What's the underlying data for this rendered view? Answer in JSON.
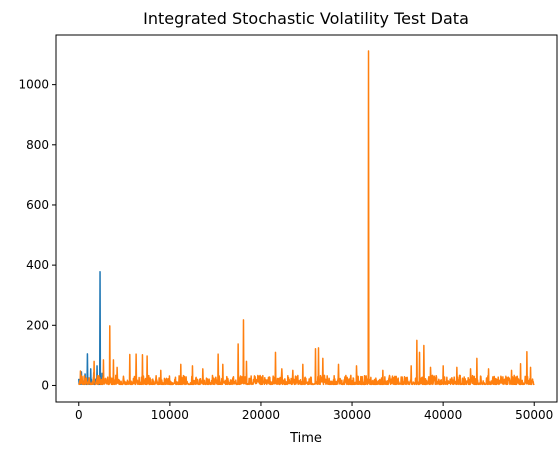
{
  "chart_data": {
    "type": "line",
    "title": "Integrated Stochastic Volatility Test Data",
    "xlabel": "Time",
    "ylabel": "",
    "xlim": [
      -2500,
      52500
    ],
    "ylim": [
      -55,
      1165
    ],
    "x_ticks": [
      0,
      10000,
      20000,
      30000,
      40000,
      50000
    ],
    "x_tick_labels": [
      "0",
      "10000",
      "20000",
      "30000",
      "40000",
      "50000"
    ],
    "y_ticks": [
      0,
      200,
      400,
      600,
      800,
      1000
    ],
    "y_tick_labels": [
      "0",
      "200",
      "400",
      "600",
      "800",
      "1000"
    ],
    "grid": false,
    "legend": "none",
    "series": [
      {
        "color": "#1f77b4",
        "x_range": [
          0,
          2700
        ],
        "baseline": 12,
        "noise": 22,
        "spikes": [
          [
            300,
            45
          ],
          [
            700,
            38
          ],
          [
            950,
            105
          ],
          [
            1300,
            55
          ],
          [
            1650,
            42
          ],
          [
            2000,
            65
          ],
          [
            2350,
            378
          ],
          [
            2550,
            40
          ]
        ]
      },
      {
        "color": "#ff7f0e",
        "x_range": [
          0,
          50000
        ],
        "baseline": 12,
        "noise": 30,
        "spikes": [
          [
            200,
            48
          ],
          [
            1700,
            80
          ],
          [
            2700,
            85
          ],
          [
            3400,
            198
          ],
          [
            3800,
            85
          ],
          [
            4200,
            60
          ],
          [
            5600,
            103
          ],
          [
            6300,
            104
          ],
          [
            7000,
            102
          ],
          [
            7500,
            98
          ],
          [
            9000,
            50
          ],
          [
            11200,
            70
          ],
          [
            12500,
            65
          ],
          [
            13600,
            55
          ],
          [
            15300,
            104
          ],
          [
            15800,
            70
          ],
          [
            17500,
            138
          ],
          [
            18100,
            218
          ],
          [
            18400,
            80
          ],
          [
            21600,
            110
          ],
          [
            22300,
            55
          ],
          [
            23500,
            50
          ],
          [
            24600,
            70
          ],
          [
            26000,
            122
          ],
          [
            26300,
            125
          ],
          [
            26800,
            90
          ],
          [
            28500,
            70
          ],
          [
            30500,
            65
          ],
          [
            31800,
            1112
          ],
          [
            33400,
            50
          ],
          [
            36500,
            65
          ],
          [
            37100,
            150
          ],
          [
            37400,
            110
          ],
          [
            37900,
            133
          ],
          [
            38600,
            60
          ],
          [
            40000,
            65
          ],
          [
            41500,
            60
          ],
          [
            43000,
            55
          ],
          [
            43700,
            90
          ],
          [
            45000,
            55
          ],
          [
            47500,
            50
          ],
          [
            48500,
            72
          ],
          [
            49200,
            112
          ],
          [
            49600,
            60
          ]
        ]
      }
    ]
  }
}
